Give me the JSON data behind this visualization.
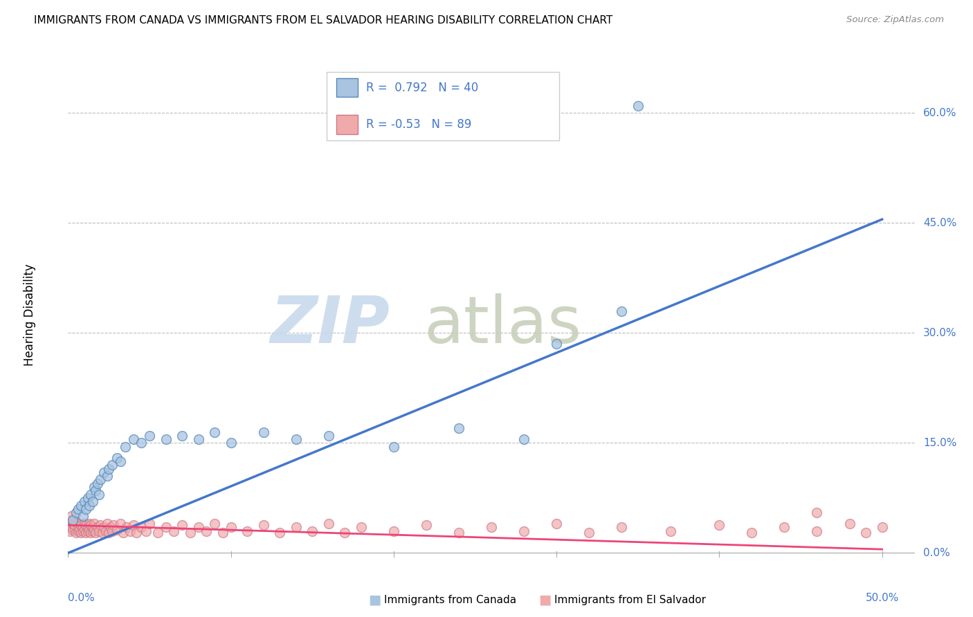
{
  "title": "IMMIGRANTS FROM CANADA VS IMMIGRANTS FROM EL SALVADOR HEARING DISABILITY CORRELATION CHART",
  "source": "Source: ZipAtlas.com",
  "ylabel": "Hearing Disability",
  "ytick_labels": [
    "0.0%",
    "15.0%",
    "30.0%",
    "45.0%",
    "60.0%"
  ],
  "ytick_values": [
    0.0,
    0.15,
    0.3,
    0.45,
    0.6
  ],
  "xtick_labels": [
    "0.0%",
    "50.0%"
  ],
  "xlim": [
    0.0,
    0.52
  ],
  "ylim": [
    -0.02,
    0.67
  ],
  "canada_R": 0.792,
  "canada_N": 40,
  "elsalvador_R": -0.53,
  "elsalvador_N": 89,
  "canada_color": "#A8C4E0",
  "canada_edge_color": "#5588BB",
  "canada_line_color": "#4477CC",
  "elsalvador_color": "#F0AAAA",
  "elsalvador_edge_color": "#CC7788",
  "elsalvador_line_color": "#EE4477",
  "background_color": "#FFFFFF",
  "grid_color": "#BBBBBB",
  "canada_scatter_x": [
    0.003,
    0.005,
    0.006,
    0.008,
    0.009,
    0.01,
    0.011,
    0.012,
    0.013,
    0.014,
    0.015,
    0.016,
    0.017,
    0.018,
    0.019,
    0.02,
    0.022,
    0.024,
    0.025,
    0.027,
    0.03,
    0.032,
    0.035,
    0.04,
    0.045,
    0.05,
    0.06,
    0.07,
    0.08,
    0.09,
    0.1,
    0.12,
    0.14,
    0.16,
    0.2,
    0.24,
    0.28,
    0.3,
    0.34,
    0.35
  ],
  "canada_scatter_y": [
    0.045,
    0.055,
    0.06,
    0.065,
    0.05,
    0.07,
    0.06,
    0.075,
    0.065,
    0.08,
    0.07,
    0.09,
    0.085,
    0.095,
    0.08,
    0.1,
    0.11,
    0.105,
    0.115,
    0.12,
    0.13,
    0.125,
    0.145,
    0.155,
    0.15,
    0.16,
    0.155,
    0.16,
    0.155,
    0.165,
    0.15,
    0.165,
    0.155,
    0.16,
    0.145,
    0.17,
    0.155,
    0.285,
    0.33,
    0.61
  ],
  "elsalvador_scatter_x": [
    0.001,
    0.002,
    0.003,
    0.003,
    0.004,
    0.004,
    0.005,
    0.005,
    0.006,
    0.006,
    0.007,
    0.007,
    0.008,
    0.008,
    0.009,
    0.009,
    0.01,
    0.01,
    0.011,
    0.011,
    0.012,
    0.012,
    0.013,
    0.013,
    0.014,
    0.014,
    0.015,
    0.015,
    0.016,
    0.016,
    0.017,
    0.018,
    0.019,
    0.02,
    0.021,
    0.022,
    0.023,
    0.024,
    0.025,
    0.026,
    0.027,
    0.028,
    0.03,
    0.032,
    0.034,
    0.036,
    0.038,
    0.04,
    0.042,
    0.045,
    0.048,
    0.05,
    0.055,
    0.06,
    0.065,
    0.07,
    0.075,
    0.08,
    0.085,
    0.09,
    0.095,
    0.1,
    0.11,
    0.12,
    0.13,
    0.14,
    0.15,
    0.16,
    0.17,
    0.18,
    0.2,
    0.22,
    0.24,
    0.26,
    0.28,
    0.3,
    0.32,
    0.34,
    0.37,
    0.4,
    0.42,
    0.44,
    0.46,
    0.48,
    0.49,
    0.5,
    0.002,
    0.003,
    0.46
  ],
  "elsalvador_scatter_y": [
    0.03,
    0.035,
    0.032,
    0.04,
    0.033,
    0.038,
    0.028,
    0.042,
    0.03,
    0.035,
    0.032,
    0.04,
    0.028,
    0.038,
    0.03,
    0.035,
    0.032,
    0.04,
    0.028,
    0.038,
    0.03,
    0.035,
    0.032,
    0.04,
    0.028,
    0.038,
    0.03,
    0.035,
    0.032,
    0.04,
    0.028,
    0.035,
    0.03,
    0.038,
    0.028,
    0.035,
    0.03,
    0.04,
    0.028,
    0.035,
    0.03,
    0.038,
    0.032,
    0.04,
    0.028,
    0.035,
    0.03,
    0.038,
    0.028,
    0.035,
    0.03,
    0.04,
    0.028,
    0.035,
    0.03,
    0.038,
    0.028,
    0.035,
    0.03,
    0.04,
    0.028,
    0.035,
    0.03,
    0.038,
    0.028,
    0.035,
    0.03,
    0.04,
    0.028,
    0.035,
    0.03,
    0.038,
    0.028,
    0.035,
    0.03,
    0.04,
    0.028,
    0.035,
    0.03,
    0.038,
    0.028,
    0.035,
    0.03,
    0.04,
    0.028,
    0.035,
    0.05,
    0.045,
    0.055
  ],
  "canada_line_x": [
    0.0,
    0.5
  ],
  "canada_line_y": [
    0.0,
    0.455
  ],
  "elsalvador_line_x": [
    0.0,
    0.5
  ],
  "elsalvador_line_y": [
    0.038,
    0.005
  ]
}
